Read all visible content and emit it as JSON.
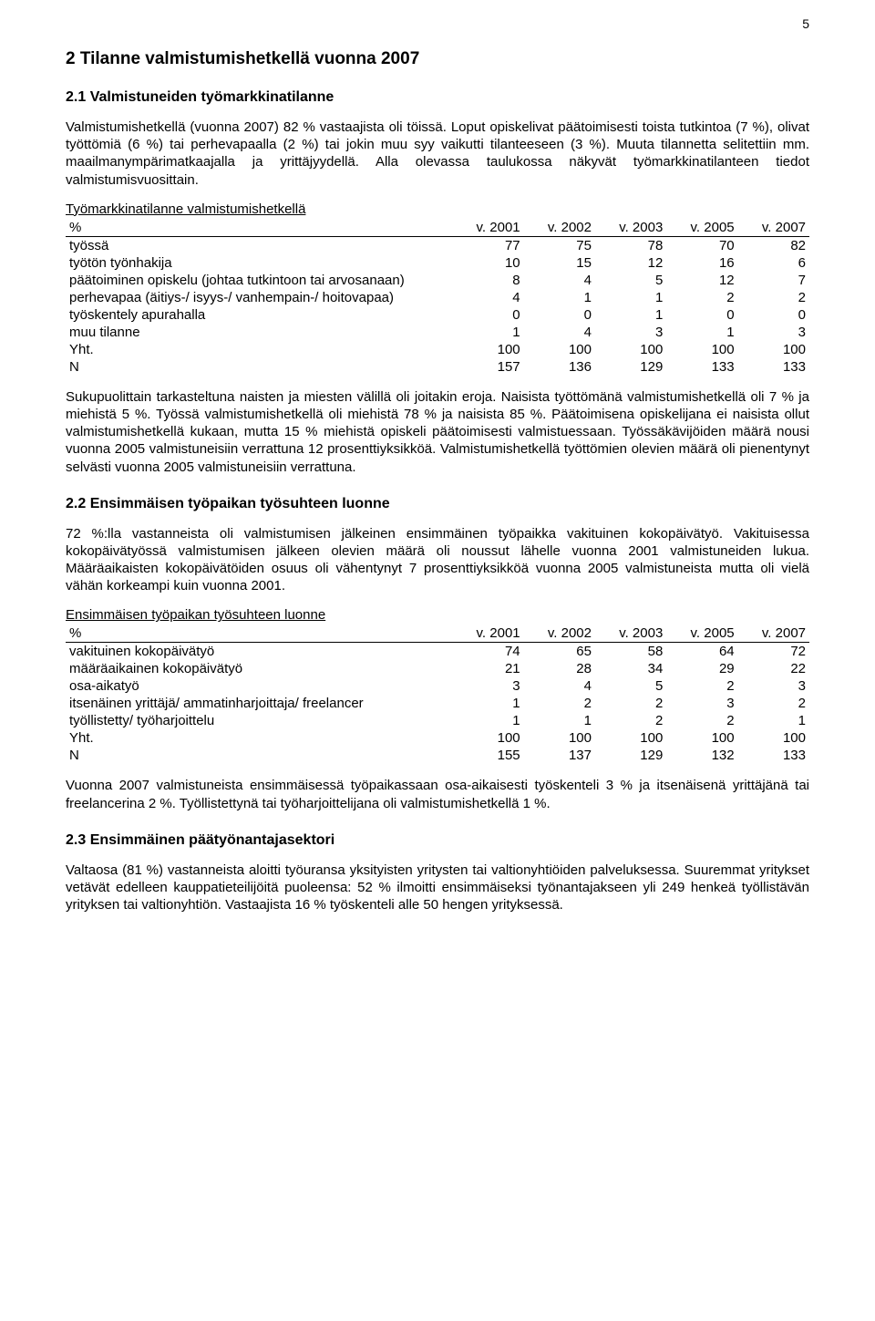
{
  "page_number": "5",
  "h1": "2  Tilanne valmistumishetkellä vuonna 2007",
  "h2_1": "2.1  Valmistuneiden työmarkkinatilanne",
  "p1": "Valmistumishetkellä (vuonna 2007) 82 % vastaajista oli töissä. Loput opiskelivat päätoimisesti toista tutkintoa (7 %), olivat työttömiä (6 %) tai perhevapaalla (2 %) tai jokin muu syy vaikutti tilanteeseen (3 %). Muuta tilannetta selitettiin mm. maailmanympärimatkaajalla ja yrittäjyydellä. Alla olevassa taulukossa näkyvät työmarkkinatilanteen tiedot valmistumisvuosittain.",
  "table1": {
    "title": "Työmarkkinatilanne valmistumishetkellä",
    "header": [
      "%",
      "v. 2001",
      "v. 2002",
      "v. 2003",
      "v. 2005",
      "v. 2007"
    ],
    "rows": [
      [
        "työssä",
        "77",
        "75",
        "78",
        "70",
        "82"
      ],
      [
        "työtön työnhakija",
        "10",
        "15",
        "12",
        "16",
        "6"
      ],
      [
        "päätoiminen opiskelu (johtaa tutkintoon tai arvosanaan)",
        "8",
        "4",
        "5",
        "12",
        "7"
      ],
      [
        "perhevapaa (äitiys-/ isyys-/ vanhempain-/ hoitovapaa)",
        "4",
        "1",
        "1",
        "2",
        "2"
      ],
      [
        "työskentely apurahalla",
        "0",
        "0",
        "1",
        "0",
        "0"
      ],
      [
        "muu tilanne",
        "1",
        "4",
        "3",
        "1",
        "3"
      ],
      [
        "Yht.",
        "100",
        "100",
        "100",
        "100",
        "100"
      ],
      [
        "N",
        "157",
        "136",
        "129",
        "133",
        "133"
      ]
    ]
  },
  "p2": "Sukupuolittain tarkasteltuna naisten ja miesten välillä oli joitakin eroja. Naisista työttömänä valmistumishetkellä oli 7 % ja miehistä 5 %. Työssä valmistumishetkellä oli miehistä 78 % ja naisista 85 %. Päätoimisena opiskelijana ei naisista ollut valmistumishetkellä kukaan, mutta 15 % miehistä opiskeli päätoimisesti valmistuessaan. Työssäkävijöiden määrä nousi vuonna 2005 valmistuneisiin verrattuna 12 prosenttiyksikköä. Valmistumishetkellä työttömien olevien määrä oli pienentynyt selvästi vuonna 2005 valmistuneisiin verrattuna.",
  "h2_2": "2.2  Ensimmäisen työpaikan työsuhteen luonne",
  "p3": "72 %:lla vastanneista oli valmistumisen jälkeinen ensimmäinen työpaikka vakituinen kokopäivätyö. Vakituisessa kokopäivätyössä valmistumisen jälkeen olevien määrä oli noussut lähelle vuonna 2001 valmistuneiden lukua. Määräaikaisten kokopäivätöiden osuus oli vähentynyt 7 prosenttiyksikköä vuonna 2005 valmistuneista mutta oli vielä vähän korkeampi kuin vuonna 2001.",
  "table2": {
    "title": "Ensimmäisen työpaikan työsuhteen luonne",
    "header": [
      "%",
      "v. 2001",
      "v. 2002",
      "v. 2003",
      "v. 2005",
      "v. 2007"
    ],
    "rows": [
      [
        "vakituinen kokopäivätyö",
        "74",
        "65",
        "58",
        "64",
        "72"
      ],
      [
        "määräaikainen kokopäivätyö",
        "21",
        "28",
        "34",
        "29",
        "22"
      ],
      [
        "osa-aikatyö",
        "3",
        "4",
        "5",
        "2",
        "3"
      ],
      [
        "itsenäinen yrittäjä/ ammatinharjoittaja/ freelancer",
        "1",
        "2",
        "2",
        "3",
        "2"
      ],
      [
        "työllistetty/ työharjoittelu",
        "1",
        "1",
        "2",
        "2",
        "1"
      ],
      [
        "Yht.",
        "100",
        "100",
        "100",
        "100",
        "100"
      ],
      [
        "N",
        "155",
        "137",
        "129",
        "132",
        "133"
      ]
    ]
  },
  "p4": "Vuonna 2007 valmistuneista ensimmäisessä työpaikassaan osa-aikaisesti työskenteli 3 % ja itsenäisenä yrittäjänä tai freelancerina 2 %. Työllistettynä tai työharjoittelijana oli valmistumishetkellä 1 %.",
  "h2_3": "2.3  Ensimmäinen päätyönantajasektori",
  "p5": "Valtaosa (81 %) vastanneista aloitti työuransa yksityisten yritysten tai valtionyhtiöiden palveluksessa. Suuremmat yritykset vetävät edelleen kauppatieteilijöitä puoleensa: 52 % ilmoitti ensimmäiseksi työnantajakseen yli 249 henkeä työllistävän yrityksen tai valtionyhtiön. Vastaajista 16 % työskenteli alle 50 hengen yrityksessä."
}
